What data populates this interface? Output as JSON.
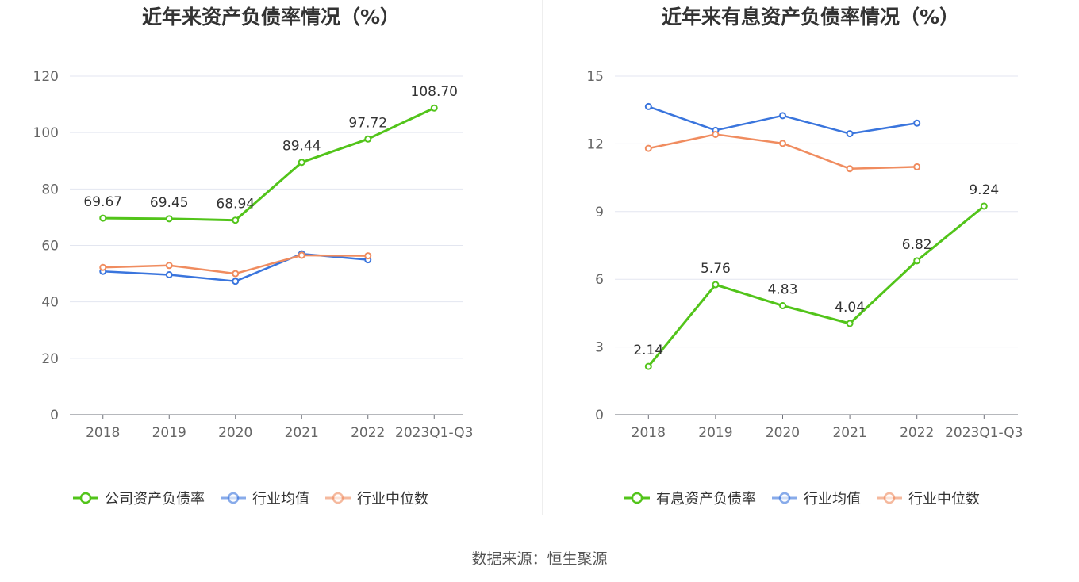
{
  "titles": {
    "left": "近年来资产负债率情况（%）",
    "right": "近年来有息资产负债率情况（%）"
  },
  "source": "数据来源：恒生聚源",
  "colors": {
    "company": "#52c41a",
    "industry_avg": "#3a75dd",
    "industry_median": "#f08c5f"
  },
  "chart_data": [
    {
      "type": "line",
      "title": "近年来资产负债率情况（%）",
      "categories": [
        "2018",
        "2019",
        "2020",
        "2021",
        "2022",
        "2023Q1-Q3"
      ],
      "ylim": [
        0,
        120
      ],
      "yticks": [
        0,
        20,
        40,
        60,
        80,
        100,
        120
      ],
      "grid": true,
      "legend_position": "bottom",
      "series": [
        {
          "name": "公司资产负债率",
          "key": "company",
          "values": [
            69.67,
            69.45,
            68.94,
            89.44,
            97.72,
            108.7
          ],
          "labels": [
            "69.67",
            "69.45",
            "68.94",
            "89.44",
            "97.72",
            "108.70"
          ]
        },
        {
          "name": "行业均值",
          "key": "industry_avg",
          "values": [
            50.8,
            49.6,
            47.3,
            57.0,
            54.9,
            null
          ]
        },
        {
          "name": "行业中位数",
          "key": "industry_median",
          "values": [
            52.2,
            52.9,
            50.0,
            56.5,
            56.3,
            null
          ]
        }
      ]
    },
    {
      "type": "line",
      "title": "近年来有息资产负债率情况（%）",
      "categories": [
        "2018",
        "2019",
        "2020",
        "2021",
        "2022",
        "2023Q1-Q3"
      ],
      "ylim": [
        0,
        15
      ],
      "yticks": [
        0,
        3,
        6,
        9,
        12,
        15
      ],
      "grid": true,
      "legend_position": "bottom",
      "series": [
        {
          "name": "有息资产负债率",
          "key": "company",
          "values": [
            2.14,
            5.76,
            4.83,
            4.04,
            6.82,
            9.24
          ],
          "labels": [
            "2.14",
            "5.76",
            "4.83",
            "4.04",
            "6.82",
            "9.24"
          ]
        },
        {
          "name": "行业均值",
          "key": "industry_avg",
          "values": [
            13.65,
            12.6,
            13.25,
            12.45,
            12.92,
            null
          ]
        },
        {
          "name": "行业中位数",
          "key": "industry_median",
          "values": [
            11.8,
            12.42,
            12.02,
            10.9,
            10.98,
            null
          ]
        }
      ]
    }
  ]
}
